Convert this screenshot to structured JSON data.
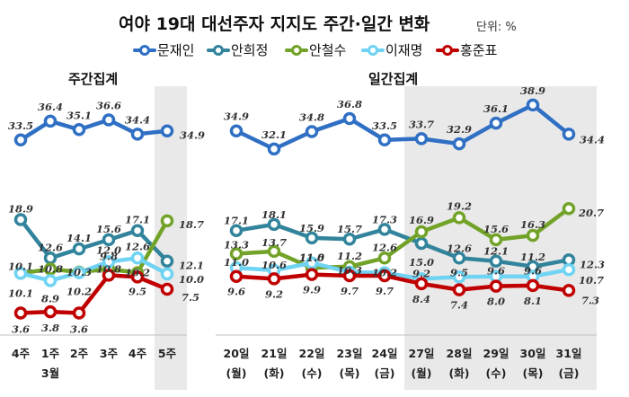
{
  "header": {
    "title": "여야 19대 대선주자 지지도 주간·일간 변화",
    "unit": "단위: %"
  },
  "colors": {
    "문재인": "#2f6fc4",
    "안희정": "#31849b",
    "안철수": "#72a328",
    "이재명": "#6fd3f3",
    "홍준표": "#c00000"
  },
  "chart_data": [
    {
      "type": "line",
      "title": "주간집계",
      "categories": [
        "4주",
        "1주",
        "2주",
        "3주",
        "4주",
        "5주"
      ],
      "group_label": "3월",
      "group_label_at": 1,
      "shaded_from": 5,
      "series": [
        {
          "name": "문재인",
          "values": [
            33.5,
            36.4,
            35.1,
            36.6,
            34.4,
            34.9
          ]
        },
        {
          "name": "안희정",
          "values": [
            18.9,
            12.6,
            14.1,
            15.6,
            17.1,
            12.1
          ]
        },
        {
          "name": "안철수",
          "values": [
            10.1,
            10.8,
            10.3,
            10.8,
            10.2,
            18.7
          ]
        },
        {
          "name": "이재명",
          "values": [
            10.1,
            8.9,
            10.2,
            12.0,
            12.6,
            10.0
          ]
        },
        {
          "name": "홍준표",
          "values": [
            3.6,
            3.8,
            3.6,
            9.8,
            9.5,
            7.5
          ]
        }
      ]
    },
    {
      "type": "line",
      "title": "일간집계",
      "categories": [
        "20일",
        "21일",
        "22일",
        "23일",
        "24일",
        "27일",
        "28일",
        "29일",
        "30일",
        "31일"
      ],
      "weekdays": [
        "(월)",
        "(화)",
        "(수)",
        "(목)",
        "(금)",
        "(월)",
        "(화)",
        "(수)",
        "(목)",
        "(금)"
      ],
      "shaded_from": 5,
      "series": [
        {
          "name": "문재인",
          "values": [
            34.9,
            32.1,
            34.8,
            36.8,
            33.5,
            33.7,
            32.9,
            36.1,
            38.9,
            34.4
          ]
        },
        {
          "name": "안희정",
          "values": [
            17.1,
            18.1,
            15.9,
            15.7,
            17.3,
            15.0,
            12.6,
            12.1,
            11.2,
            12.3
          ]
        },
        {
          "name": "안철수",
          "values": [
            13.3,
            13.7,
            11.0,
            11.2,
            12.6,
            16.9,
            19.2,
            15.6,
            16.3,
            20.7
          ]
        },
        {
          "name": "이재명",
          "values": [
            11.0,
            10.6,
            11.8,
            10.3,
            10.2,
            9.2,
            9.5,
            9.6,
            9.6,
            10.7
          ]
        },
        {
          "name": "홍준표",
          "values": [
            9.6,
            9.2,
            9.9,
            9.7,
            9.7,
            8.4,
            7.4,
            8.0,
            8.1,
            7.3
          ]
        }
      ]
    }
  ]
}
